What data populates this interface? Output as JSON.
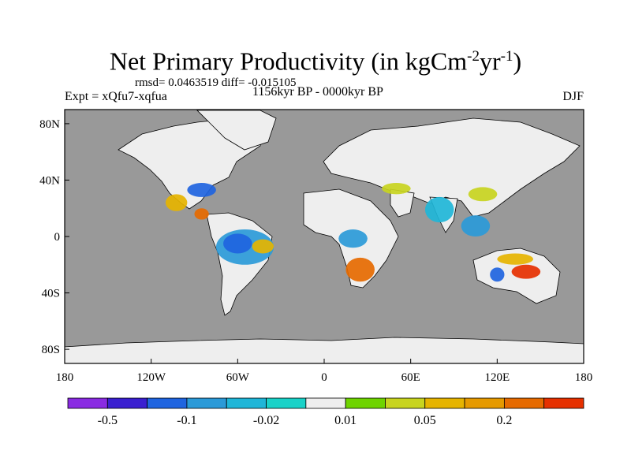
{
  "title": {
    "main": "Net Primary Productivity (in kgCm",
    "sup1": "-2",
    "mid": "yr",
    "sup2": "-1",
    "end": ")"
  },
  "stats_line": "rmsd= 0.0463519 diff= -0.015105",
  "experiment": "Expt = xQfu7-xqfua",
  "period": "1156kyr BP - 0000kyr BP",
  "season": "DJF",
  "map": {
    "projection": "cylindrical equidistant",
    "lon_range": [
      -180,
      180
    ],
    "lat_range": [
      -90,
      90
    ],
    "x_ticks": [
      {
        "lon": -180,
        "label": "180"
      },
      {
        "lon": -120,
        "label": "120W"
      },
      {
        "lon": -60,
        "label": "60W"
      },
      {
        "lon": 0,
        "label": "0"
      },
      {
        "lon": 60,
        "label": "60E"
      },
      {
        "lon": 120,
        "label": "120E"
      },
      {
        "lon": 180,
        "label": "180"
      }
    ],
    "y_ticks": [
      {
        "lat": 80,
        "label": "80N"
      },
      {
        "lat": 40,
        "label": "40N"
      },
      {
        "lat": 0,
        "label": "0"
      },
      {
        "lat": -40,
        "label": "40S"
      },
      {
        "lat": -80,
        "label": "80S"
      }
    ],
    "ocean_color": "#999999",
    "land_color": "#eeeeee"
  },
  "colorbar": {
    "colors": [
      "#8a2be2",
      "#3a1fd0",
      "#1f64e0",
      "#2b9ad8",
      "#1fb6d8",
      "#19d2c8",
      "#eeeeee",
      "#6ed400",
      "#c8d41f",
      "#e6b400",
      "#e69a00",
      "#e66a00",
      "#e63000"
    ],
    "labels": [
      {
        "boundary": 1,
        "text": "-0.5"
      },
      {
        "boundary": 3,
        "text": "-0.1"
      },
      {
        "boundary": 5,
        "text": "-0.02"
      },
      {
        "boundary": 7,
        "text": "0.01"
      },
      {
        "boundary": 9,
        "text": "0.05"
      },
      {
        "boundary": 11,
        "text": "0.2"
      }
    ]
  },
  "anomaly_regions": [
    {
      "name": "amazon",
      "lon": [
        -75,
        -35
      ],
      "lat": [
        -20,
        5
      ],
      "color": "#2b9ad8"
    },
    {
      "name": "amazon-core",
      "lon": [
        -70,
        -50
      ],
      "lat": [
        -12,
        2
      ],
      "color": "#1f64e0"
    },
    {
      "name": "brazil-east",
      "lon": [
        -50,
        -35
      ],
      "lat": [
        -12,
        -2
      ],
      "color": "#e6b400"
    },
    {
      "name": "southern-africa",
      "lon": [
        15,
        35
      ],
      "lat": [
        -32,
        -15
      ],
      "color": "#e66a00"
    },
    {
      "name": "central-africa",
      "lon": [
        10,
        30
      ],
      "lat": [
        -8,
        5
      ],
      "color": "#2b9ad8"
    },
    {
      "name": "australia-center",
      "lon": [
        130,
        150
      ],
      "lat": [
        -30,
        -20
      ],
      "color": "#e63000"
    },
    {
      "name": "australia-north",
      "lon": [
        120,
        145
      ],
      "lat": [
        -20,
        -12
      ],
      "color": "#e6b400"
    },
    {
      "name": "australia-west",
      "lon": [
        115,
        125
      ],
      "lat": [
        -32,
        -22
      ],
      "color": "#1f64e0"
    },
    {
      "name": "india",
      "lon": [
        70,
        90
      ],
      "lat": [
        10,
        28
      ],
      "color": "#1fb6d8"
    },
    {
      "name": "china",
      "lon": [
        100,
        120
      ],
      "lat": [
        25,
        35
      ],
      "color": "#c8d41f"
    },
    {
      "name": "se-usa",
      "lon": [
        -95,
        -75
      ],
      "lat": [
        28,
        38
      ],
      "color": "#1f64e0"
    },
    {
      "name": "mexico",
      "lon": [
        -110,
        -95
      ],
      "lat": [
        18,
        30
      ],
      "color": "#e6b400"
    },
    {
      "name": "caribbean",
      "lon": [
        -90,
        -80
      ],
      "lat": [
        12,
        20
      ],
      "color": "#e66a00"
    },
    {
      "name": "se-asia",
      "lon": [
        95,
        115
      ],
      "lat": [
        0,
        15
      ],
      "color": "#2b9ad8"
    },
    {
      "name": "middle-east",
      "lon": [
        40,
        60
      ],
      "lat": [
        30,
        38
      ],
      "color": "#c8d41f"
    }
  ]
}
